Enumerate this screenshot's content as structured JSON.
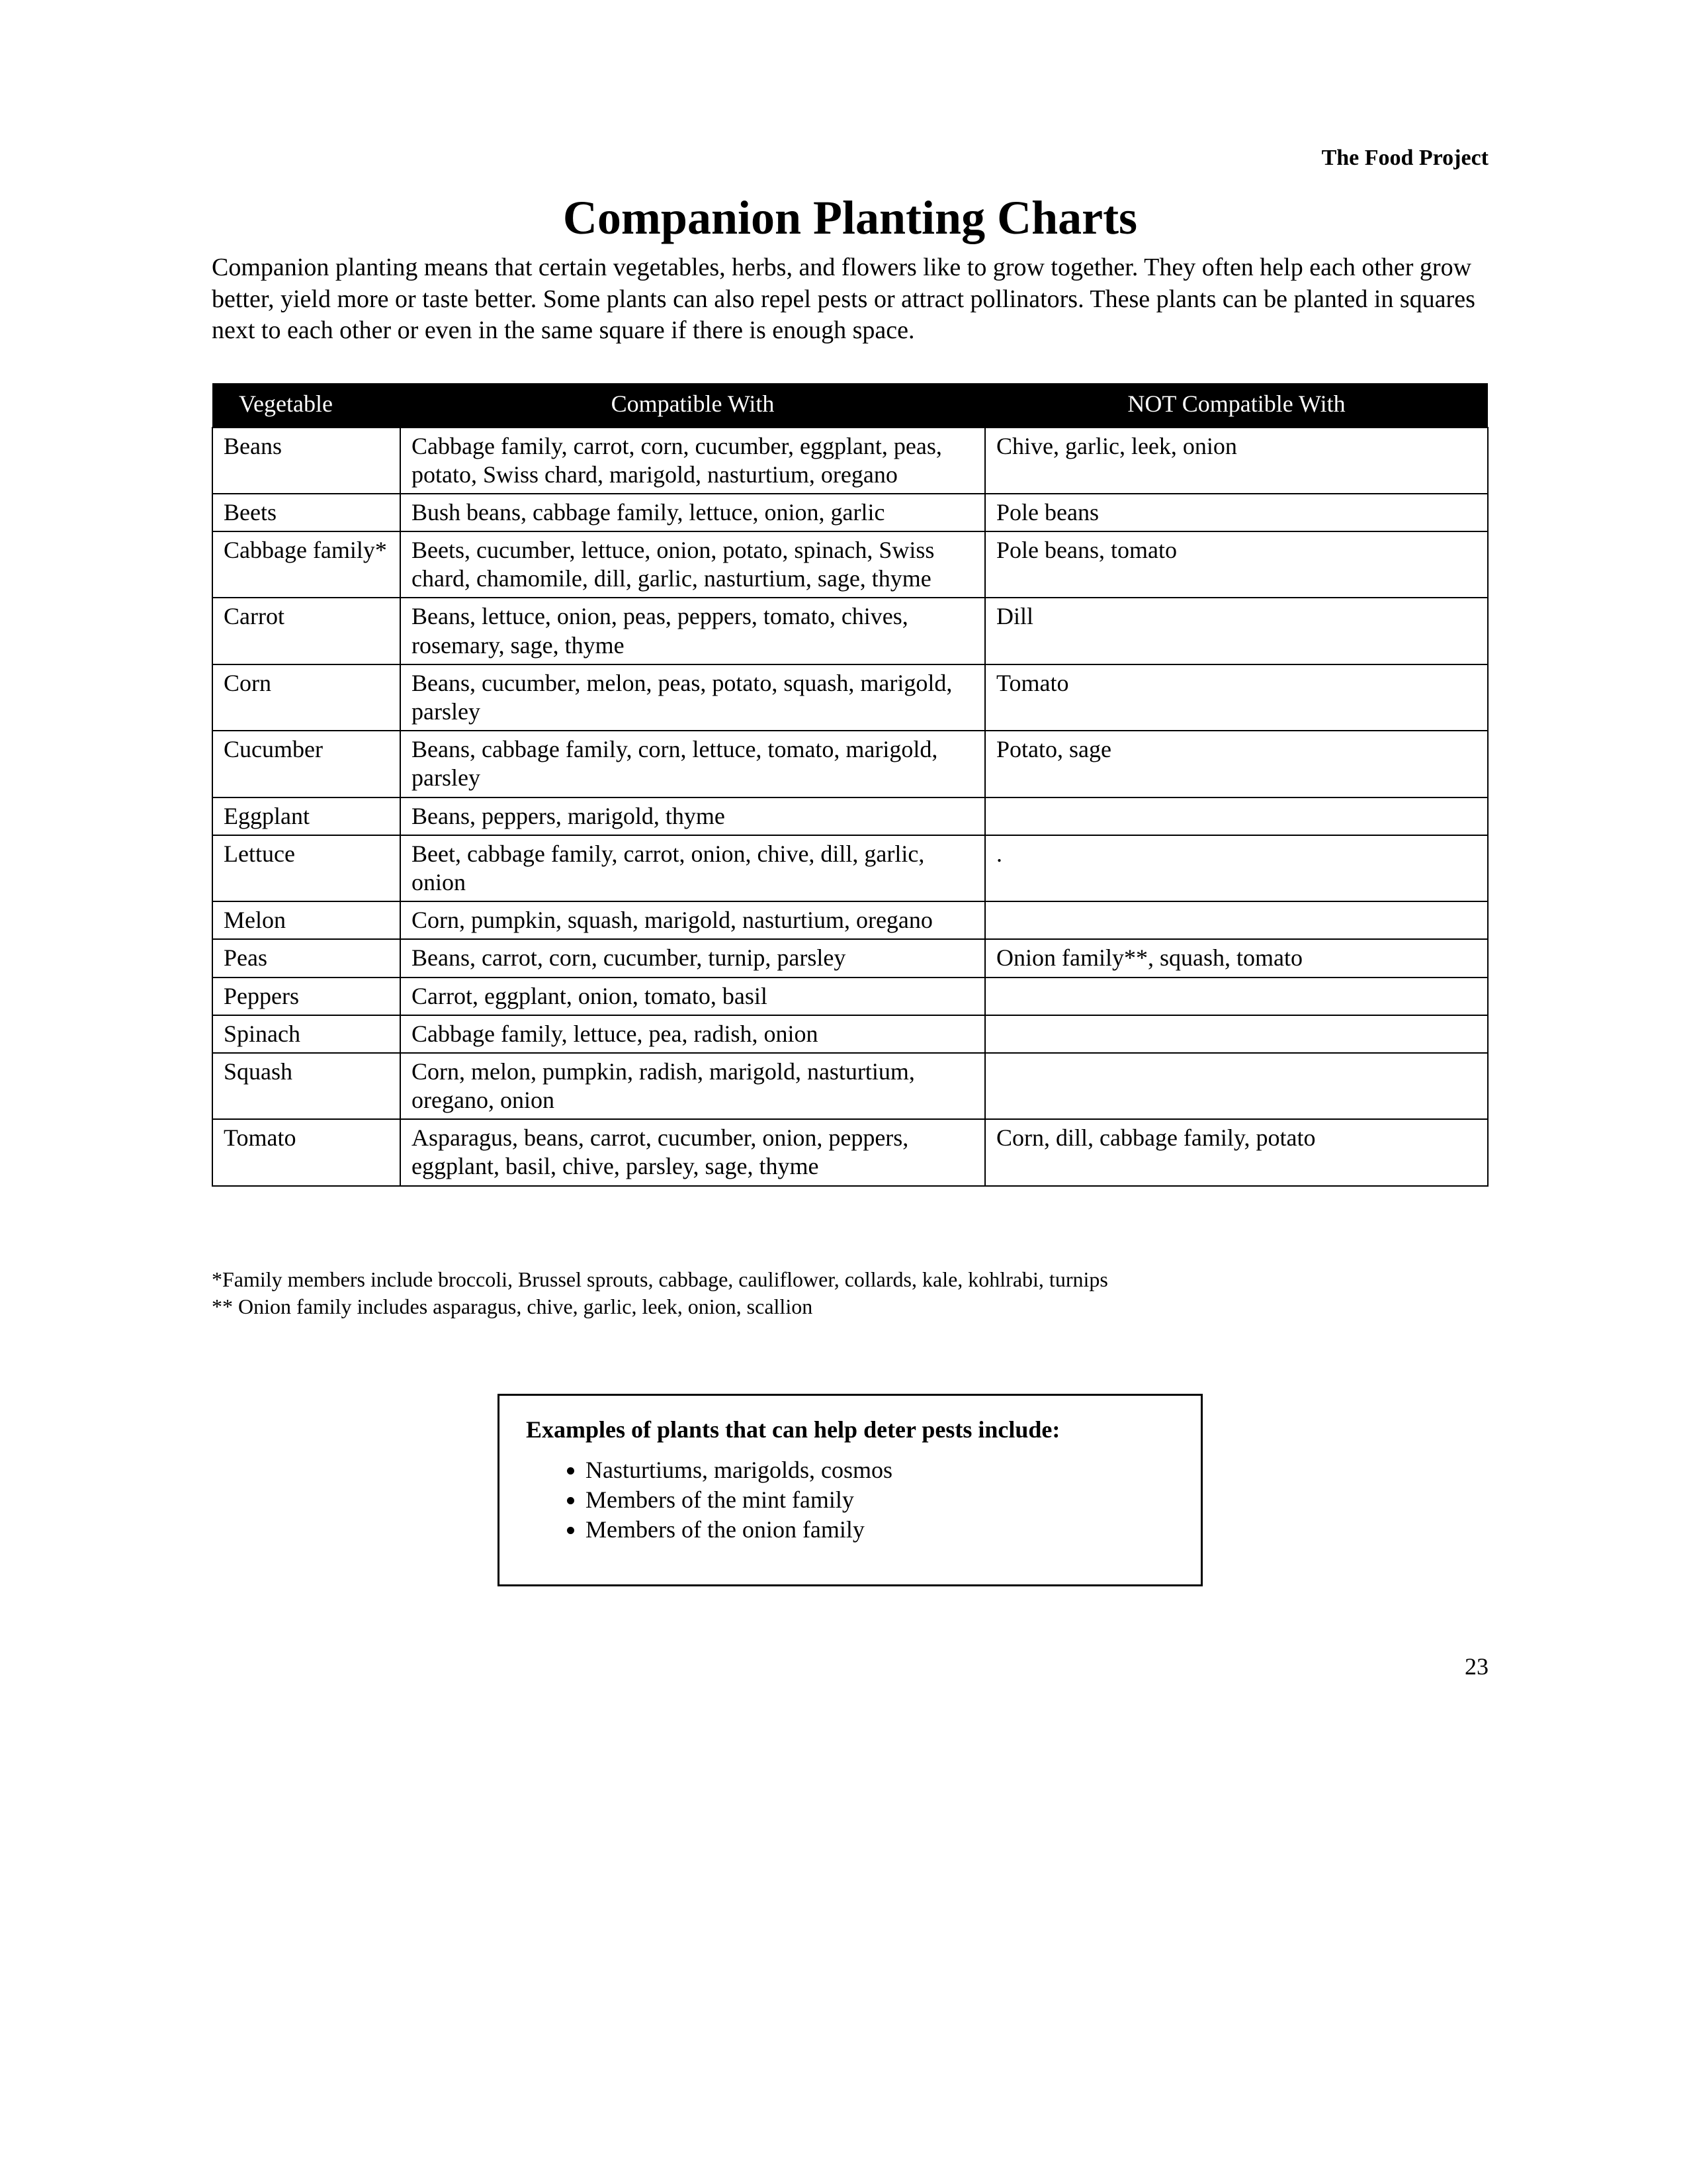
{
  "header": {
    "org": "The Food Project"
  },
  "title": "Companion Planting Charts",
  "intro": "Companion planting means that certain vegetables, herbs, and flowers like to grow together. They often help each other grow better, yield more or taste better. Some plants can also repel pests or attract pollinators. These plants can be planted in squares next to each other or even in the same square if there is enough space.",
  "table": {
    "columns": [
      "Vegetable",
      "Compatible With",
      "NOT Compatible With"
    ],
    "rows": [
      [
        "Beans",
        "Cabbage family, carrot, corn, cucumber, eggplant, peas, potato, Swiss chard, marigold, nasturtium, oregano",
        "Chive, garlic, leek, onion"
      ],
      [
        "Beets",
        "Bush beans, cabbage family, lettuce, onion, garlic",
        "Pole beans"
      ],
      [
        "Cabbage family*",
        "Beets, cucumber, lettuce, onion, potato, spinach, Swiss chard, chamomile, dill, garlic, nasturtium, sage, thyme",
        "Pole beans, tomato"
      ],
      [
        "Carrot",
        "Beans, lettuce, onion, peas, peppers, tomato, chives, rosemary, sage, thyme",
        "Dill"
      ],
      [
        "Corn",
        "Beans, cucumber, melon, peas, potato, squash, marigold, parsley",
        "Tomato"
      ],
      [
        "Cucumber",
        "Beans, cabbage family, corn, lettuce, tomato, marigold, parsley",
        "Potato, sage"
      ],
      [
        "Eggplant",
        "Beans, peppers, marigold, thyme",
        ""
      ],
      [
        "Lettuce",
        "Beet, cabbage family, carrot, onion, chive, dill, garlic, onion",
        "."
      ],
      [
        "Melon",
        "Corn, pumpkin, squash, marigold, nasturtium, oregano",
        ""
      ],
      [
        "Peas",
        "Beans, carrot, corn, cucumber, turnip, parsley",
        "Onion family**, squash, tomato"
      ],
      [
        "Peppers",
        "Carrot, eggplant, onion, tomato, basil",
        ""
      ],
      [
        "Spinach",
        "Cabbage family, lettuce, pea, radish, onion",
        ""
      ],
      [
        "Squash",
        "Corn, melon, pumpkin, radish, marigold, nasturtium, oregano, onion",
        ""
      ],
      [
        "Tomato",
        "Asparagus, beans, carrot, cucumber, onion, peppers, eggplant, basil, chive, parsley, sage, thyme",
        "Corn, dill, cabbage family, potato"
      ]
    ]
  },
  "footnotes": {
    "f1": "*Family members include broccoli, Brussel sprouts, cabbage, cauliflower, collards, kale, kohlrabi, turnips",
    "f2": "** Onion family includes asparagus, chive, garlic, leek, onion, scallion"
  },
  "deter_box": {
    "title": "Examples of plants that can help deter pests include:",
    "items": [
      "Nasturtiums, marigolds, cosmos",
      "Members of the mint family",
      "Members of the onion family"
    ]
  },
  "page_number": "23"
}
